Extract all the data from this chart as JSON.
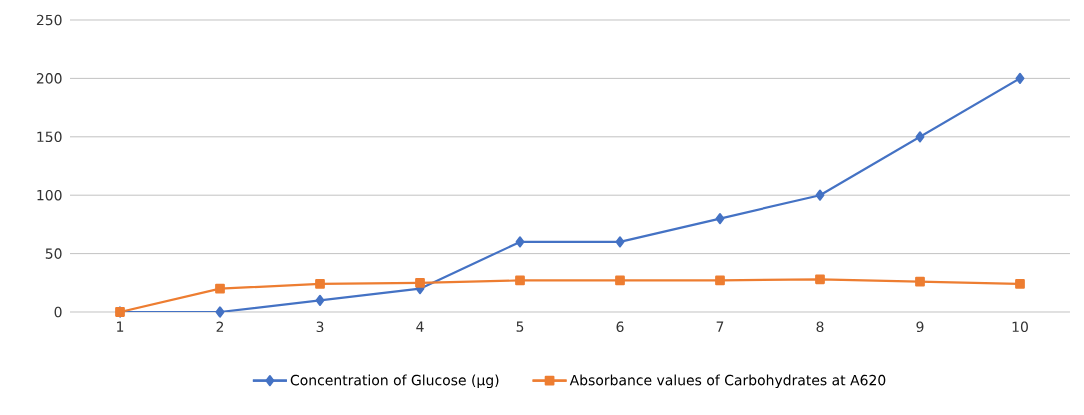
{
  "chart_data": {
    "type": "line",
    "categories": [
      "1",
      "2",
      "3",
      "4",
      "5",
      "6",
      "7",
      "8",
      "9",
      "10"
    ],
    "series": [
      {
        "name": "Concentration of Glucose (µg)",
        "color": "#4472c4",
        "marker": "diamond",
        "values": [
          0,
          0,
          10,
          20,
          60,
          60,
          80,
          100,
          150,
          200
        ]
      },
      {
        "name": "Absorbance values of Carbohydrates at A620",
        "color": "#ed7d31",
        "marker": "square",
        "values": [
          0,
          20,
          24,
          25,
          27,
          27,
          27,
          28,
          26,
          24
        ]
      }
    ],
    "ylim": [
      0,
      250
    ],
    "yticks": [
      0,
      50,
      100,
      150,
      200,
      250
    ],
    "grid": "y",
    "legend": "bottom"
  }
}
